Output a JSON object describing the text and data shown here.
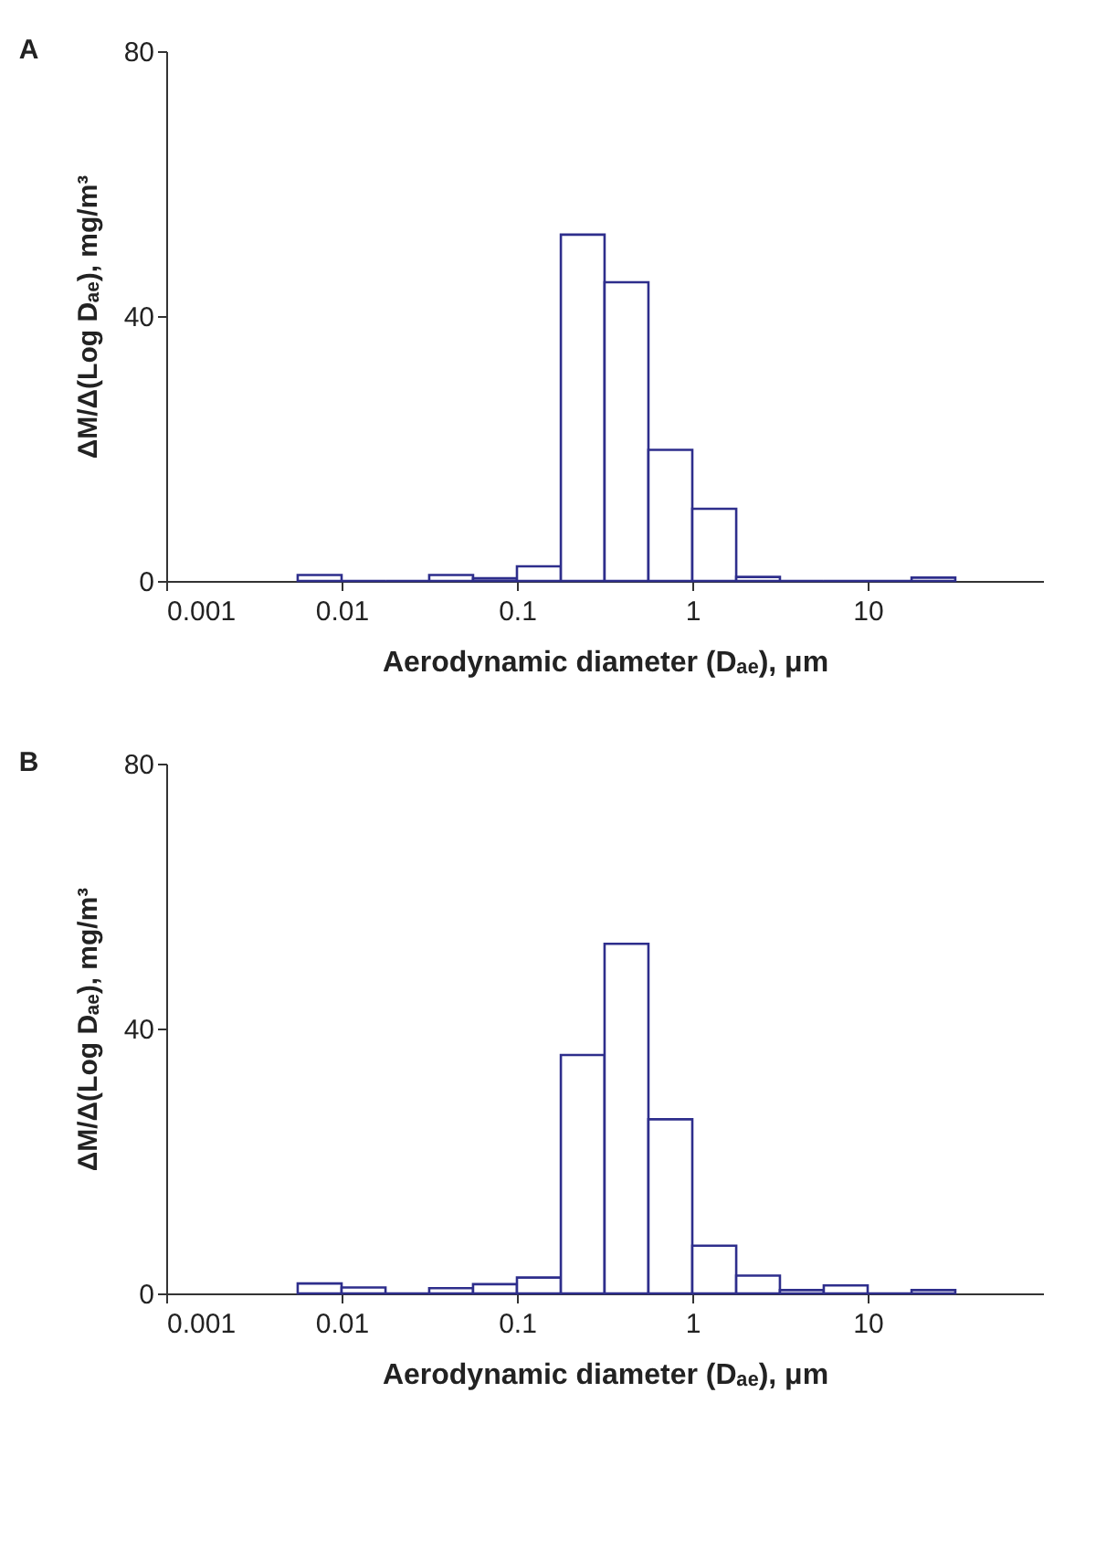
{
  "chart_data": [
    {
      "type": "histogram",
      "title": "A",
      "xlabel": "Aerodynamic diameter (Dₐₑ), μm",
      "ylabel": "ΔM/Δ(Log Dₐₑ), mg/m³",
      "log": "x",
      "grid": false,
      "color": "#2e2e8c",
      "bins": [
        0.00562,
        0.01,
        0.0178,
        0.0316,
        0.0562,
        0.1,
        0.178,
        0.316,
        0.562,
        1,
        1.78,
        3.16,
        5.62,
        10,
        17.8,
        31.6
      ],
      "values": [
        0.9,
        0,
        0,
        0.9,
        0.4,
        2.2,
        52.3,
        45.1,
        19.8,
        10.9,
        0.6,
        0,
        0,
        0,
        0.5
      ],
      "xlim": [
        0.001,
        100
      ],
      "xticks": [
        0.001,
        0.01,
        0.1,
        1,
        10
      ],
      "ylim": [
        0,
        80
      ],
      "yticks": [
        0,
        40,
        80
      ]
    },
    {
      "type": "histogram",
      "title": "B",
      "xlabel": "Aerodynamic diameter (Dₐₑ), μm",
      "ylabel": "ΔM/Δ(Log Dₐₑ), mg/m³",
      "log": "x",
      "grid": false,
      "color": "#2e2e8c",
      "bins": [
        0.00562,
        0.01,
        0.0178,
        0.0316,
        0.0562,
        0.1,
        0.178,
        0.316,
        0.562,
        1,
        1.78,
        3.16,
        5.62,
        10,
        17.8,
        31.6
      ],
      "values": [
        1.5,
        0.9,
        0,
        0.8,
        1.4,
        2.4,
        36,
        52.8,
        26.3,
        7.2,
        2.7,
        0.5,
        1.2,
        0,
        0.5
      ],
      "xlim": [
        0.001,
        100
      ],
      "xticks": [
        0.001,
        0.01,
        0.1,
        1,
        10
      ],
      "ylim": [
        0,
        80
      ],
      "yticks": [
        0,
        40,
        80
      ]
    }
  ]
}
